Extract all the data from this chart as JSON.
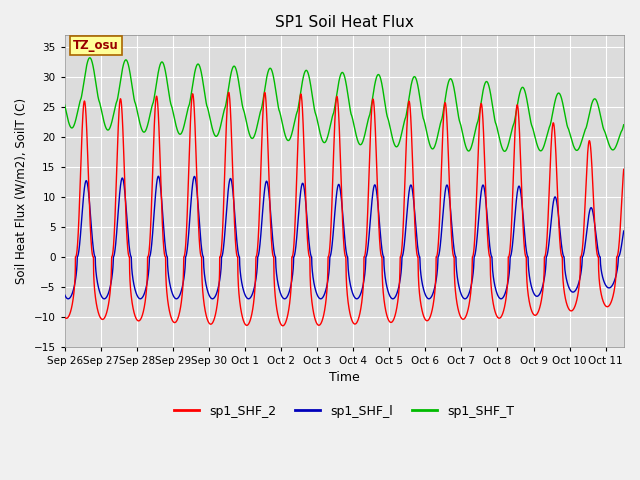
{
  "title": "SP1 Soil Heat Flux",
  "xlabel": "Time",
  "ylabel": "Soil Heat Flux (W/m2), SoilT (C)",
  "ylim": [
    -15,
    37
  ],
  "yticks": [
    -15,
    -10,
    -5,
    0,
    5,
    10,
    15,
    20,
    25,
    30,
    35
  ],
  "xlim_days": [
    0,
    15.5
  ],
  "xtick_labels": [
    "Sep 26",
    "Sep 27",
    "Sep 28",
    "Sep 29",
    "Sep 30",
    "Oct 1",
    "Oct 2",
    "Oct 3",
    "Oct 4",
    "Oct 5",
    "Oct 6",
    "Oct 7",
    "Oct 8",
    "Oct 9",
    "Oct 10",
    "Oct 11"
  ],
  "xtick_positions": [
    0,
    1,
    2,
    3,
    4,
    5,
    6,
    7,
    8,
    9,
    10,
    11,
    12,
    13,
    14,
    15
  ],
  "color_red": "#FF0000",
  "color_blue": "#0000BB",
  "color_green": "#00BB00",
  "bg_color": "#DCDCDC",
  "fig_bg_color": "#F0F0F0",
  "annotation_text": "TZ_osu",
  "annotation_bg": "#FFFF99",
  "annotation_border": "#AA6600",
  "legend_labels": [
    "sp1_SHF_2",
    "sp1_SHF_l",
    "sp1_SHF_T"
  ],
  "n_days": 15.5,
  "period": 1.0
}
